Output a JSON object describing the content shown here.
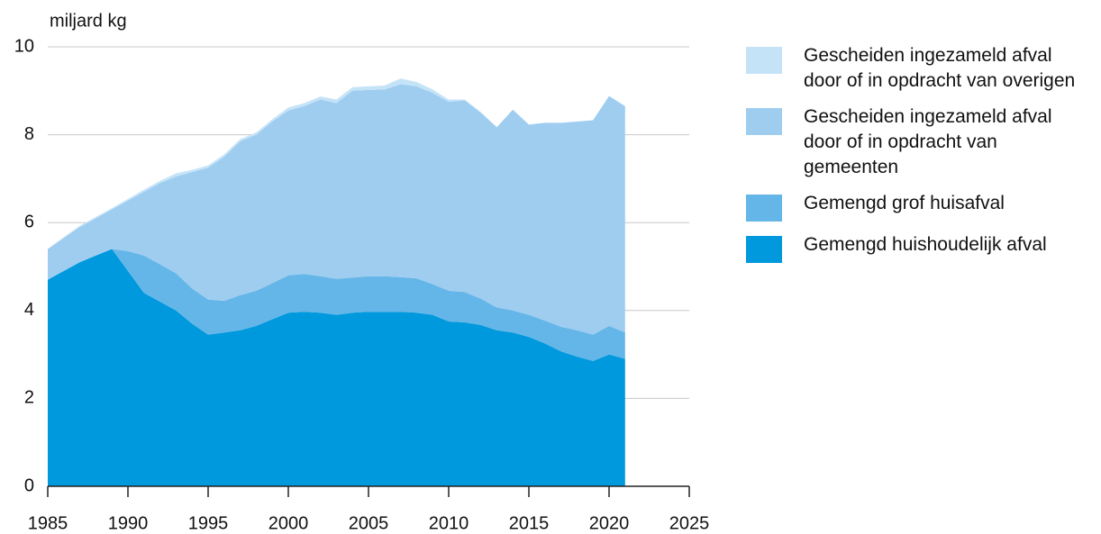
{
  "chart_data": {
    "type": "area",
    "stacked": true,
    "y_label": "miljard kg",
    "x": [
      1985,
      1986,
      1987,
      1988,
      1989,
      1990,
      1991,
      1992,
      1993,
      1994,
      1995,
      1996,
      1997,
      1998,
      1999,
      2000,
      2001,
      2002,
      2003,
      2004,
      2005,
      2006,
      2007,
      2008,
      2009,
      2010,
      2011,
      2012,
      2013,
      2014,
      2015,
      2016,
      2017,
      2018,
      2019,
      2020,
      2021
    ],
    "series": [
      {
        "name": "Gemengd huishoudelijk afval",
        "color": "#0099dd",
        "values": [
          4.7,
          4.9,
          5.1,
          5.25,
          5.4,
          4.9,
          4.4,
          4.2,
          4.0,
          3.7,
          3.45,
          3.5,
          3.55,
          3.65,
          3.8,
          3.95,
          3.97,
          3.95,
          3.9,
          3.95,
          3.97,
          3.97,
          3.97,
          3.95,
          3.9,
          3.75,
          3.73,
          3.67,
          3.55,
          3.5,
          3.4,
          3.25,
          3.07,
          2.95,
          2.85,
          3.0,
          2.9
        ]
      },
      {
        "name": "Gemengd grof huisafval",
        "color": "#65b6e8",
        "values": [
          0,
          0,
          0,
          0,
          0,
          0.45,
          0.85,
          0.85,
          0.85,
          0.8,
          0.8,
          0.72,
          0.8,
          0.8,
          0.82,
          0.85,
          0.86,
          0.83,
          0.82,
          0.8,
          0.81,
          0.81,
          0.79,
          0.78,
          0.7,
          0.7,
          0.69,
          0.6,
          0.52,
          0.5,
          0.5,
          0.52,
          0.56,
          0.6,
          0.6,
          0.65,
          0.6
        ]
      },
      {
        "name": "Gescheiden ingezameld afval door of in opdracht van gemeenten",
        "color": "#9ecdf0",
        "values": [
          0.7,
          0.75,
          0.8,
          0.85,
          0.9,
          1.15,
          1.45,
          1.85,
          2.2,
          2.65,
          3.0,
          3.28,
          3.5,
          3.55,
          3.68,
          3.75,
          3.82,
          4.02,
          4.0,
          4.25,
          4.24,
          4.25,
          4.39,
          4.37,
          4.35,
          4.3,
          4.36,
          4.23,
          4.1,
          4.57,
          4.33,
          4.5,
          4.64,
          4.75,
          4.88,
          5.23,
          5.15
        ]
      },
      {
        "name": "Gescheiden ingezameld afval door of in opdracht van overigen",
        "color": "#c5e3f7",
        "values": [
          0,
          0.02,
          0.03,
          0.03,
          0.03,
          0.04,
          0.05,
          0.05,
          0.07,
          0.05,
          0.05,
          0.05,
          0.05,
          0.05,
          0.05,
          0.07,
          0.07,
          0.07,
          0.08,
          0.08,
          0.08,
          0.09,
          0.13,
          0.1,
          0.08,
          0.05,
          0.02,
          0.02,
          0,
          0,
          0,
          0,
          0,
          0,
          0,
          0,
          0
        ]
      }
    ],
    "xlim": [
      1985,
      2025
    ],
    "xticks": [
      1985,
      1990,
      1995,
      2000,
      2005,
      2010,
      2015,
      2020,
      2025
    ],
    "ylim": [
      0,
      10
    ],
    "yticks": [
      0,
      2,
      4,
      6,
      8,
      10
    ],
    "grid": true
  }
}
